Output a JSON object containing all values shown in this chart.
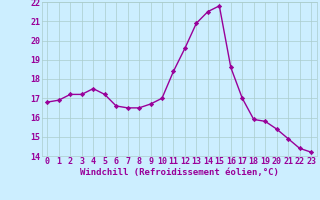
{
  "x": [
    0,
    1,
    2,
    3,
    4,
    5,
    6,
    7,
    8,
    9,
    10,
    11,
    12,
    13,
    14,
    15,
    16,
    17,
    18,
    19,
    20,
    21,
    22,
    23
  ],
  "y": [
    16.8,
    16.9,
    17.2,
    17.2,
    17.5,
    17.2,
    16.6,
    16.5,
    16.5,
    16.7,
    17.0,
    18.4,
    19.6,
    20.9,
    21.5,
    21.8,
    18.6,
    17.0,
    15.9,
    15.8,
    15.4,
    14.9,
    14.4,
    14.2
  ],
  "line_color": "#990099",
  "marker": "D",
  "marker_size": 2.2,
  "bg_color": "#cceeff",
  "grid_color": "#aacccc",
  "xlabel": "Windchill (Refroidissement éolien,°C)",
  "ylim": [
    14,
    22
  ],
  "yticks": [
    14,
    15,
    16,
    17,
    18,
    19,
    20,
    21,
    22
  ],
  "xticks": [
    0,
    1,
    2,
    3,
    4,
    5,
    6,
    7,
    8,
    9,
    10,
    11,
    12,
    13,
    14,
    15,
    16,
    17,
    18,
    19,
    20,
    21,
    22,
    23
  ],
  "xlabel_fontsize": 6.5,
  "tick_fontsize": 6,
  "line_width": 1.0
}
